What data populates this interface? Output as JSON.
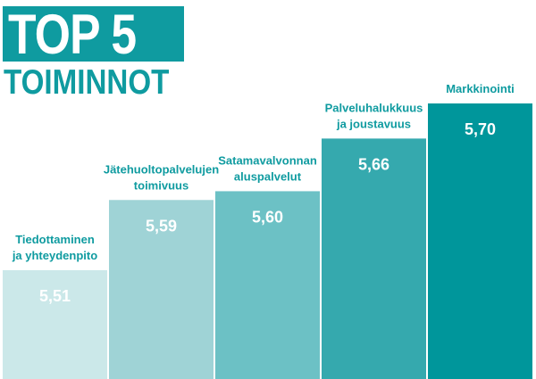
{
  "title": {
    "main": "TOP 5",
    "sub": "TOIMINNOT"
  },
  "colors": {
    "title_bg": "#0f9ba0",
    "title_text": "#ffffff",
    "label": "#0f9ba0",
    "value_text": "#ffffff"
  },
  "chart_data": {
    "type": "bar",
    "categories": [
      "Tiedottaminen\nja yhteydenpito",
      "Jätehuoltopalvelujen\ntoimivuus",
      "Satamavalvonnan\naluspalvelut",
      "Palveluhalukkuus\nja joustavuus",
      "Markkinointi"
    ],
    "values": [
      5.51,
      5.59,
      5.6,
      5.66,
      5.7
    ],
    "value_labels": [
      "5,51",
      "5,59",
      "5,60",
      "5,66",
      "5,70"
    ],
    "bar_colors": [
      "#cbe8e9",
      "#9fd3d6",
      "#6cc1c5",
      "#35a9ae",
      "#00969b"
    ],
    "title": "",
    "xlabel": "",
    "ylabel": "",
    "grid": false,
    "legend": "none"
  }
}
